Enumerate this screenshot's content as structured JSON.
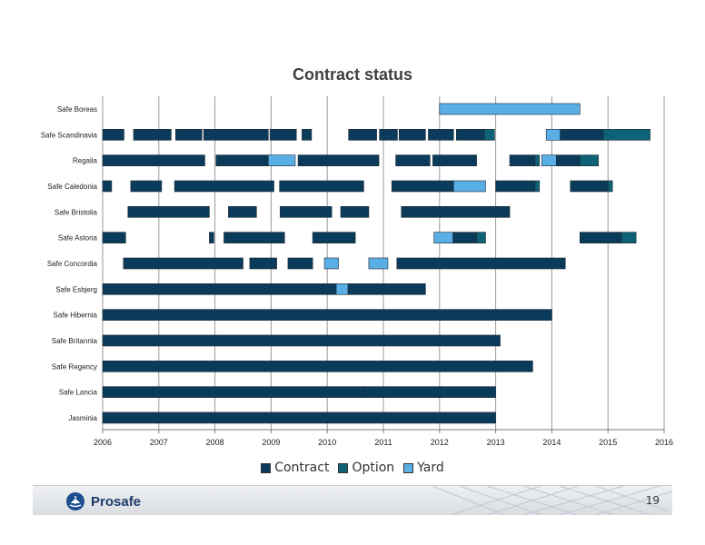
{
  "chart_data": {
    "type": "gantt",
    "title": "Contract status",
    "xlim": [
      2006,
      2016
    ],
    "x_ticks": [
      "2006",
      "2007",
      "2008",
      "2009",
      "2010",
      "2011",
      "2012",
      "2013",
      "2014",
      "2015",
      "2016"
    ],
    "grid": true,
    "legend_position": "bottom",
    "categories": [
      "Safe Boreas",
      "Safe Scandinavia",
      "Regalia",
      "Safe Caledonia",
      "Safe Bristolia",
      "Safe Astoria",
      "Safe Concordia",
      "Safe Esbjerg",
      "Safe Hibernia",
      "Safe Britannia",
      "Safe Regency",
      "Safe Lancia",
      "Jasminia"
    ],
    "status_types": [
      {
        "key": "contract",
        "label": "Contract",
        "color": "#0b3b5b"
      },
      {
        "key": "option",
        "label": "Option",
        "color": "#0e6275"
      },
      {
        "key": "yard",
        "label": "Yard",
        "color": "#5aaee6"
      }
    ],
    "bars": [
      {
        "row": "Safe Boreas",
        "start": 2012.0,
        "end": 2014.5,
        "status": "yard"
      },
      {
        "row": "Safe Scandinavia",
        "start": 2006.0,
        "end": 2006.38,
        "status": "contract"
      },
      {
        "row": "Safe Scandinavia",
        "start": 2006.55,
        "end": 2007.22,
        "status": "contract"
      },
      {
        "row": "Safe Scandinavia",
        "start": 2007.3,
        "end": 2007.77,
        "status": "contract"
      },
      {
        "row": "Safe Scandinavia",
        "start": 2007.8,
        "end": 2008.95,
        "status": "contract"
      },
      {
        "row": "Safe Scandinavia",
        "start": 2008.98,
        "end": 2009.45,
        "status": "contract"
      },
      {
        "row": "Safe Scandinavia",
        "start": 2009.55,
        "end": 2009.72,
        "status": "contract"
      },
      {
        "row": "Safe Scandinavia",
        "start": 2010.38,
        "end": 2010.88,
        "status": "contract"
      },
      {
        "row": "Safe Scandinavia",
        "start": 2010.93,
        "end": 2011.25,
        "status": "contract"
      },
      {
        "row": "Safe Scandinavia",
        "start": 2011.28,
        "end": 2011.75,
        "status": "contract"
      },
      {
        "row": "Safe Scandinavia",
        "start": 2011.8,
        "end": 2012.25,
        "status": "contract"
      },
      {
        "row": "Safe Scandinavia",
        "start": 2012.3,
        "end": 2012.8,
        "status": "contract"
      },
      {
        "row": "Safe Scandinavia",
        "start": 2012.8,
        "end": 2012.98,
        "status": "option"
      },
      {
        "row": "Safe Scandinavia",
        "start": 2013.9,
        "end": 2014.15,
        "status": "yard"
      },
      {
        "row": "Safe Scandinavia",
        "start": 2014.15,
        "end": 2014.92,
        "status": "contract"
      },
      {
        "row": "Safe Scandinavia",
        "start": 2014.92,
        "end": 2015.75,
        "status": "option"
      },
      {
        "row": "Regalia",
        "start": 2006.0,
        "end": 2007.82,
        "status": "contract"
      },
      {
        "row": "Regalia",
        "start": 2008.02,
        "end": 2008.95,
        "status": "contract"
      },
      {
        "row": "Regalia",
        "start": 2008.95,
        "end": 2009.43,
        "status": "yard"
      },
      {
        "row": "Regalia",
        "start": 2009.48,
        "end": 2010.92,
        "status": "contract"
      },
      {
        "row": "Regalia",
        "start": 2011.22,
        "end": 2011.83,
        "status": "contract"
      },
      {
        "row": "Regalia",
        "start": 2011.88,
        "end": 2012.66,
        "status": "contract"
      },
      {
        "row": "Regalia",
        "start": 2013.25,
        "end": 2013.7,
        "status": "contract"
      },
      {
        "row": "Regalia",
        "start": 2013.7,
        "end": 2013.78,
        "status": "option"
      },
      {
        "row": "Regalia",
        "start": 2013.82,
        "end": 2014.08,
        "status": "yard"
      },
      {
        "row": "Regalia",
        "start": 2014.08,
        "end": 2014.5,
        "status": "contract"
      },
      {
        "row": "Regalia",
        "start": 2014.5,
        "end": 2014.83,
        "status": "option"
      },
      {
        "row": "Safe Caledonia",
        "start": 2006.0,
        "end": 2006.16,
        "status": "contract"
      },
      {
        "row": "Safe Caledonia",
        "start": 2006.5,
        "end": 2007.05,
        "status": "contract"
      },
      {
        "row": "Safe Caledonia",
        "start": 2007.28,
        "end": 2009.05,
        "status": "contract"
      },
      {
        "row": "Safe Caledonia",
        "start": 2009.15,
        "end": 2010.65,
        "status": "contract"
      },
      {
        "row": "Safe Caledonia",
        "start": 2011.15,
        "end": 2012.25,
        "status": "contract"
      },
      {
        "row": "Safe Caledonia",
        "start": 2012.25,
        "end": 2012.82,
        "status": "yard"
      },
      {
        "row": "Safe Caledonia",
        "start": 2013.0,
        "end": 2013.7,
        "status": "contract"
      },
      {
        "row": "Safe Caledonia",
        "start": 2013.7,
        "end": 2013.78,
        "status": "option"
      },
      {
        "row": "Safe Caledonia",
        "start": 2014.33,
        "end": 2015.0,
        "status": "contract"
      },
      {
        "row": "Safe Caledonia",
        "start": 2015.0,
        "end": 2015.08,
        "status": "option"
      },
      {
        "row": "Safe Bristolia",
        "start": 2006.45,
        "end": 2007.9,
        "status": "contract"
      },
      {
        "row": "Safe Bristolia",
        "start": 2008.24,
        "end": 2008.74,
        "status": "contract"
      },
      {
        "row": "Safe Bristolia",
        "start": 2009.16,
        "end": 2010.08,
        "status": "contract"
      },
      {
        "row": "Safe Bristolia",
        "start": 2010.24,
        "end": 2010.74,
        "status": "contract"
      },
      {
        "row": "Safe Bristolia",
        "start": 2011.32,
        "end": 2013.25,
        "status": "contract"
      },
      {
        "row": "Safe Astoria",
        "start": 2006.0,
        "end": 2006.41,
        "status": "contract"
      },
      {
        "row": "Safe Astoria",
        "start": 2007.9,
        "end": 2007.98,
        "status": "contract"
      },
      {
        "row": "Safe Astoria",
        "start": 2008.16,
        "end": 2009.24,
        "status": "contract"
      },
      {
        "row": "Safe Astoria",
        "start": 2009.74,
        "end": 2010.5,
        "status": "contract"
      },
      {
        "row": "Safe Astoria",
        "start": 2011.9,
        "end": 2012.24,
        "status": "yard"
      },
      {
        "row": "Safe Astoria",
        "start": 2012.24,
        "end": 2012.66,
        "status": "contract"
      },
      {
        "row": "Safe Astoria",
        "start": 2012.66,
        "end": 2012.82,
        "status": "option"
      },
      {
        "row": "Safe Astoria",
        "start": 2014.5,
        "end": 2015.24,
        "status": "contract"
      },
      {
        "row": "Safe Astoria",
        "start": 2015.24,
        "end": 2015.5,
        "status": "option"
      },
      {
        "row": "Safe Concordia",
        "start": 2006.37,
        "end": 2008.5,
        "status": "contract"
      },
      {
        "row": "Safe Concordia",
        "start": 2008.62,
        "end": 2009.1,
        "status": "contract"
      },
      {
        "row": "Safe Concordia",
        "start": 2009.3,
        "end": 2009.74,
        "status": "contract"
      },
      {
        "row": "Safe Concordia",
        "start": 2009.95,
        "end": 2010.2,
        "status": "yard"
      },
      {
        "row": "Safe Concordia",
        "start": 2010.74,
        "end": 2011.08,
        "status": "yard"
      },
      {
        "row": "Safe Concordia",
        "start": 2011.24,
        "end": 2014.24,
        "status": "contract"
      },
      {
        "row": "Safe Esbjerg",
        "start": 2006.0,
        "end": 2010.16,
        "status": "contract"
      },
      {
        "row": "Safe Esbjerg",
        "start": 2010.16,
        "end": 2010.37,
        "status": "yard"
      },
      {
        "row": "Safe Esbjerg",
        "start": 2010.37,
        "end": 2011.75,
        "status": "contract"
      },
      {
        "row": "Safe Hibernia",
        "start": 2006.0,
        "end": 2014.0,
        "status": "contract"
      },
      {
        "row": "Safe Britannia",
        "start": 2006.0,
        "end": 2013.08,
        "status": "contract"
      },
      {
        "row": "Safe Regency",
        "start": 2006.0,
        "end": 2013.66,
        "status": "contract"
      },
      {
        "row": "Safe Lancia",
        "start": 2006.0,
        "end": 2010.66,
        "status": "contract"
      },
      {
        "row": "Safe Lancia",
        "start": 2010.66,
        "end": 2013.0,
        "status": "contract"
      },
      {
        "row": "Jasminia",
        "start": 2006.0,
        "end": 2013.0,
        "status": "contract"
      }
    ]
  },
  "footer": {
    "brand": "Prosafe",
    "page_number": "19"
  }
}
